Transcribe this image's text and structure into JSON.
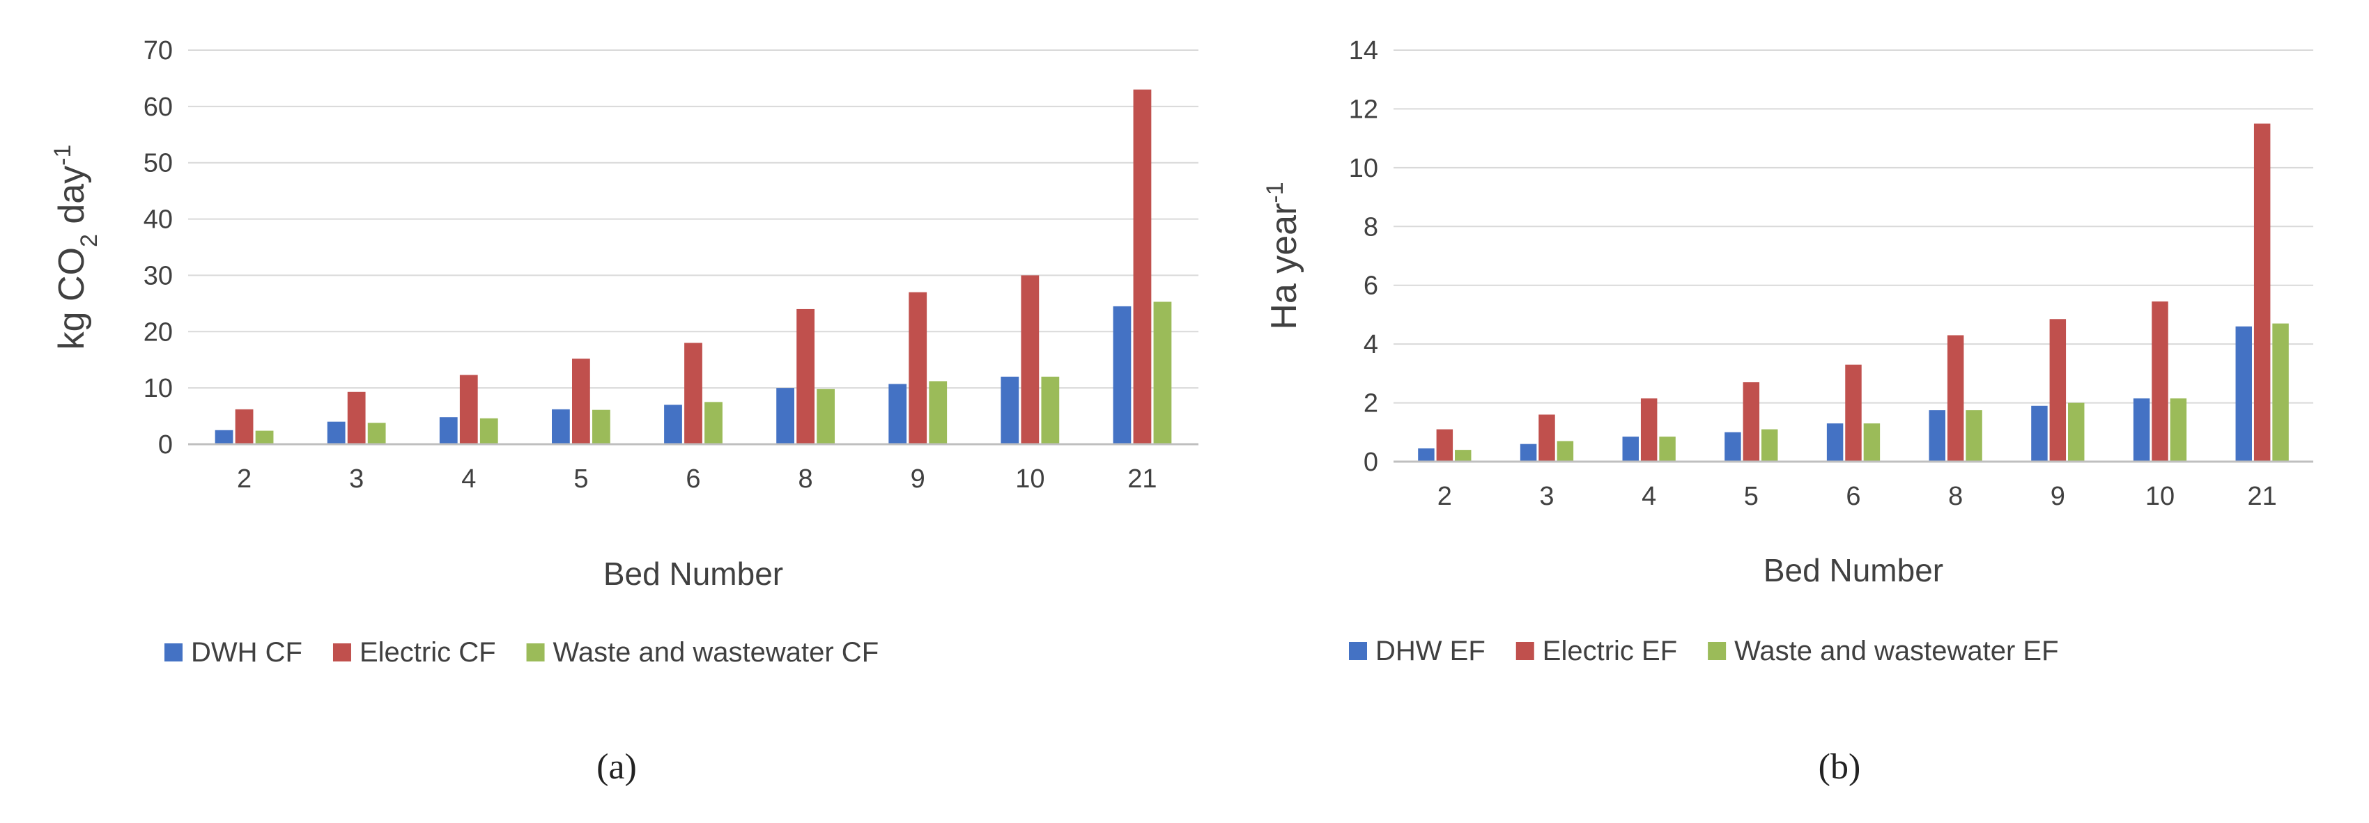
{
  "colors": {
    "blue": "#4472C4",
    "red": "#C0504D",
    "green": "#9BBB59",
    "grid": "#D9D9D9",
    "axis": "#BFBFBF"
  },
  "chart_data": [
    {
      "type": "bar",
      "caption": "(a)",
      "categories": [
        "2",
        "3",
        "4",
        "5",
        "6",
        "8",
        "9",
        "10",
        "21"
      ],
      "xlabel": "Bed Number",
      "ylabel_main": "kg CO",
      "ylabel_sub": "2",
      "ylabel_tail": " day",
      "ylabel_sup": "-1",
      "ylim": [
        0,
        70
      ],
      "yticks": [
        0,
        10,
        20,
        30,
        40,
        50,
        60,
        70
      ],
      "grid": true,
      "legend_position": "bottom",
      "series": [
        {
          "name": "DWH CF",
          "color": "#4472C4",
          "values": [
            2.5,
            4,
            4.8,
            6.2,
            7,
            10,
            10.7,
            12,
            24.5
          ]
        },
        {
          "name": "Electric CF",
          "color": "#C0504D",
          "values": [
            6.2,
            9.3,
            12.3,
            15.2,
            18,
            24,
            27,
            30,
            63
          ]
        },
        {
          "name": "Waste and wastewater CF",
          "color": "#9BBB59",
          "values": [
            2.4,
            3.8,
            4.6,
            6.1,
            7.5,
            9.8,
            11.2,
            12,
            25.3
          ]
        }
      ]
    },
    {
      "type": "bar",
      "caption": "(b)",
      "categories": [
        "2",
        "3",
        "4",
        "5",
        "6",
        "8",
        "9",
        "10",
        "21"
      ],
      "xlabel": "Bed Number",
      "ylabel_main": "Ha year",
      "ylabel_sub": "",
      "ylabel_tail": "",
      "ylabel_sup": "-1",
      "ylim": [
        0,
        14
      ],
      "yticks": [
        0,
        2,
        4,
        6,
        8,
        10,
        12,
        14
      ],
      "grid": true,
      "legend_position": "bottom",
      "series": [
        {
          "name": "DHW EF",
          "color": "#4472C4",
          "values": [
            0.45,
            0.6,
            0.85,
            1.0,
            1.3,
            1.75,
            1.9,
            2.15,
            4.6
          ]
        },
        {
          "name": "Electric EF",
          "color": "#C0504D",
          "values": [
            1.1,
            1.6,
            2.15,
            2.7,
            3.3,
            4.3,
            4.85,
            5.45,
            11.5
          ]
        },
        {
          "name": "Waste and wastewater EF",
          "color": "#9BBB59",
          "values": [
            0.4,
            0.7,
            0.85,
            1.1,
            1.3,
            1.75,
            2.0,
            2.15,
            4.7
          ]
        }
      ]
    }
  ]
}
